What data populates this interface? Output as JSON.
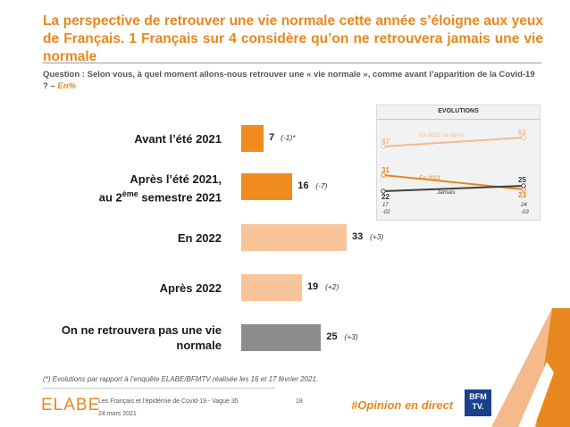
{
  "title": "La perspective de retrouver une vie normale cette année s’éloigne aux yeux de Français. 1 Français sur 4 considère qu’on ne retrouvera jamais une vie normale",
  "question": {
    "text": "Question : Selon vous, à quel moment allons-nous retrouver une « vie normale », comme avant l’apparition de la Covid-19 ? –",
    "unit": "En%"
  },
  "chart_data": [
    {
      "type": "bar",
      "orientation": "horizontal",
      "categories": [
        "Avant l’été 2021",
        "Après l’été 2021, au 2ème semestre 2021",
        "En 2022",
        "Après 2022",
        "On ne retrouvera pas une vie normale"
      ],
      "category_lines": [
        [
          "Avant l’été 2021"
        ],
        [
          "Après l’été 2021,",
          "au 2ème semestre 2021"
        ],
        [
          "En 2022"
        ],
        [
          "Après 2022"
        ],
        [
          "On ne retrouvera pas une vie",
          "normale"
        ]
      ],
      "values": [
        7,
        16,
        33,
        19,
        25
      ],
      "value_labels": [
        "7",
        "16",
        "33",
        "19",
        "25"
      ],
      "evolution_labels": [
        "(-1)*",
        "(-7)",
        "(+3)",
        "(+2)",
        "(+3)"
      ],
      "colors": [
        "#f08c1e",
        "#f08c1e",
        "#f8c49a",
        "#f8c49a",
        "#8c8c8c"
      ],
      "xlim": [
        0,
        33
      ]
    },
    {
      "type": "line",
      "title": "EVOLUTIONS",
      "x": [
        "17 -02",
        "24 -03"
      ],
      "x_labels": [
        [
          "17",
          "-02"
        ],
        [
          "24",
          "-03"
        ]
      ],
      "series": [
        {
          "name": "En 2022 ou après",
          "values": [
            47,
            52
          ],
          "color": "#f5b98c"
        },
        {
          "name": "En 2021",
          "values": [
            31,
            23
          ],
          "color": "#e8871e"
        },
        {
          "name": "Jamais",
          "values": [
            22,
            25
          ],
          "color": "#404040"
        }
      ],
      "ylim": [
        15,
        60
      ]
    }
  ],
  "footnote": "(*) Evolutions par rapport à l’enquête ELABE/BFMTV réalisée les 16 et 17 février 2021.",
  "footer": {
    "logo": "ELABE",
    "survey": "Les Français et l’épidémie de Covid-19 - Vague 35",
    "date": "24 mars 2021",
    "page": "18",
    "hashtag": "#Opinion en direct",
    "partner_logo": [
      "BFM",
      "TV."
    ]
  }
}
